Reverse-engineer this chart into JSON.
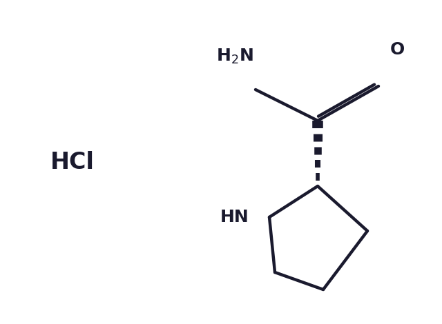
{
  "background_color": "#ffffff",
  "line_color": "#1a1a2e",
  "line_width": 3.2,
  "fig_width": 6.4,
  "fig_height": 4.7,
  "hcl_text": "HCl",
  "hcl_fontsize": 24,
  "nh2_text": "H$_2$N",
  "o_text": "O",
  "hn_text": "HN",
  "label_fontsize": 18
}
